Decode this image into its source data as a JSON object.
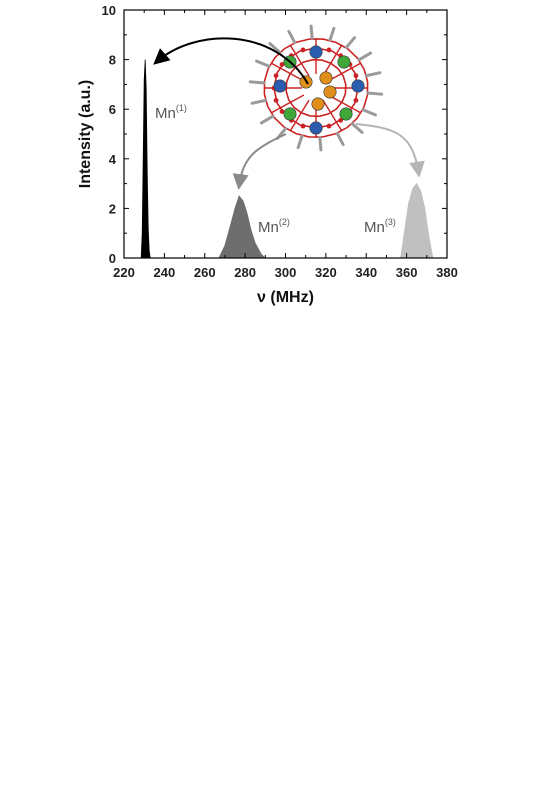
{
  "chart_data": {
    "type": "area",
    "xlabel": "ν (MHz)",
    "ylabel": "Intensity (a.u.)",
    "xlim": [
      220,
      380
    ],
    "ylim": [
      0,
      10
    ],
    "xticks": [
      220,
      240,
      260,
      280,
      300,
      320,
      340,
      360,
      380
    ],
    "yticks": [
      0,
      2,
      4,
      6,
      8,
      10
    ],
    "grid": false,
    "series": [
      {
        "name": "Mn(1)",
        "label_base": "Mn",
        "label_sup": "(1)",
        "color": "#000000",
        "x": [
          228.5,
          229.0,
          229.5,
          230.0,
          230.5,
          231.0,
          231.5,
          232.0,
          232.5,
          233.0
        ],
        "y": [
          0,
          1.0,
          4.0,
          7.2,
          8.0,
          6.8,
          3.5,
          1.2,
          0.3,
          0
        ]
      },
      {
        "name": "Mn(2)",
        "label_base": "Mn",
        "label_sup": "(2)",
        "color": "#6e6e6e",
        "x": [
          267,
          270,
          273,
          275,
          277,
          279,
          281,
          283,
          285,
          288,
          290
        ],
        "y": [
          0,
          0.5,
          1.4,
          2.0,
          2.5,
          2.3,
          1.8,
          1.1,
          0.6,
          0.15,
          0
        ]
      },
      {
        "name": "Mn(3)",
        "label_base": "Mn",
        "label_sup": "(3)",
        "color": "#c0c0c0",
        "x": [
          357,
          359,
          361,
          363,
          365,
          367,
          369,
          371,
          373
        ],
        "y": [
          0,
          1.1,
          2.2,
          2.8,
          3.0,
          2.7,
          2.0,
          0.9,
          0
        ]
      }
    ]
  },
  "molecule": {
    "atom_colors": {
      "mn_core": "#e0901a",
      "mn_blue": "#2a5db0",
      "mn_green": "#3fa63a",
      "oxygen": "#cc2222",
      "carbon": "#9a9a9a"
    }
  }
}
